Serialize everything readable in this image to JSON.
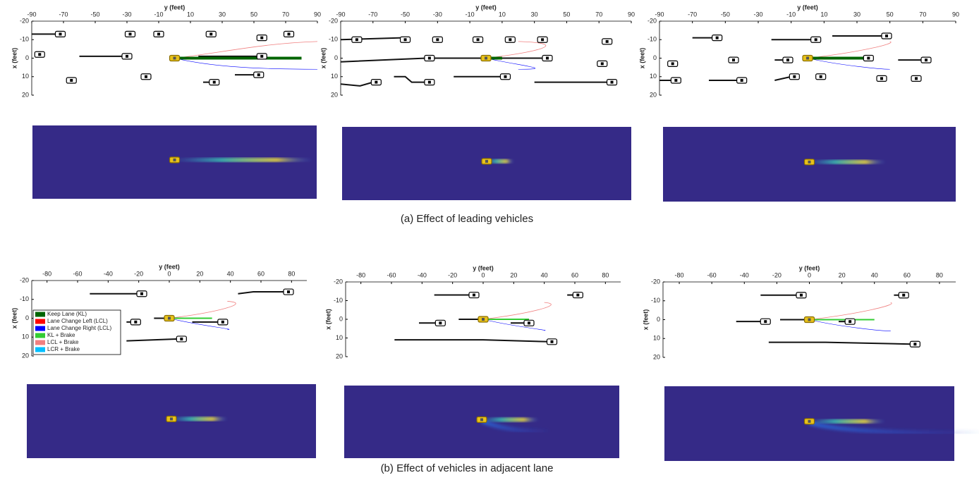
{
  "figure": {
    "rows": [
      {
        "caption": "(a) Effect of leading vehicles",
        "plots": [
          {
            "xlabel": "y (feet)",
            "ylabel": "x (feet)",
            "xticks": [
              -90,
              -70,
              -50,
              -30,
              -10,
              10,
              30,
              50,
              70,
              90
            ],
            "yticks": [
              -20,
              -10,
              0,
              10,
              20
            ]
          },
          {
            "xlabel": "y (feet)",
            "ylabel": "x (feet)",
            "xticks": [
              -90,
              -70,
              -50,
              -30,
              -10,
              10,
              30,
              50,
              70,
              90
            ],
            "yticks": [
              -20,
              -10,
              0,
              10,
              20
            ]
          },
          {
            "xlabel": "y (feet)",
            "ylabel": "x (feet)",
            "xticks": [
              -90,
              -70,
              -50,
              -30,
              -10,
              10,
              30,
              50,
              70,
              90
            ],
            "yticks": [
              -20,
              -10,
              0,
              10,
              20
            ]
          }
        ]
      },
      {
        "caption": "(b) Effect of vehicles in adjacent lane",
        "plots": [
          {
            "xlabel": "y (feet)",
            "ylabel": "x (feet)",
            "xticks": [
              -80,
              -60,
              -40,
              -20,
              0,
              20,
              40,
              60,
              80
            ],
            "yticks": [
              -20,
              -10,
              0,
              10,
              20
            ]
          },
          {
            "xlabel": "y (feet)",
            "ylabel": "x (feet)",
            "xticks": [
              -80,
              -60,
              -40,
              -20,
              0,
              20,
              40,
              60,
              80
            ],
            "yticks": [
              -20,
              -10,
              0,
              10,
              20
            ]
          },
          {
            "xlabel": "y (feet)",
            "ylabel": "x (feet)",
            "xticks": [
              -80,
              -60,
              -40,
              -20,
              0,
              20,
              40,
              60,
              80
            ],
            "yticks": [
              -20,
              -10,
              0,
              10,
              20
            ]
          }
        ]
      }
    ],
    "legend": [
      {
        "name": "Keep Lane (KL)",
        "color": "#006400"
      },
      {
        "name": "Lane Change Left (LCL)",
        "color": "#ff0000"
      },
      {
        "name": "Lane Change Right (LCL)",
        "color": "#0000ff"
      },
      {
        "name": "KL + Brake",
        "color": "#33cc33"
      },
      {
        "name": "LCL + Brake",
        "color": "#f08080"
      },
      {
        "name": "LCR + Brake",
        "color": "#00bfff"
      }
    ]
  }
}
